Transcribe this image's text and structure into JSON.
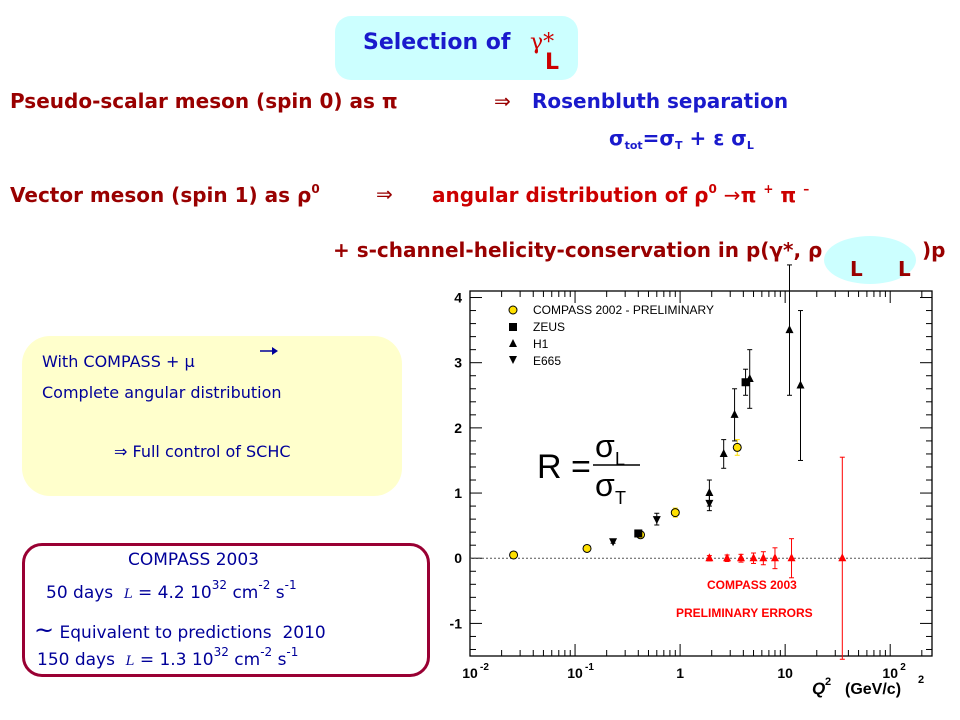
{
  "header": {
    "title_prefix": "Selection of",
    "title_gamma": "γ*",
    "title_sub": "L"
  },
  "lines": {
    "pseudo_left": "Pseudo-scalar meson (spin 0) as π",
    "arrow": "⇒",
    "pseudo_right": "Rosenbluth separation",
    "sigma_tot": "σ",
    "sigma_tot_sub": "tot",
    "sigma_eq": "=σ",
    "sigma_T_sub": "T",
    "sigma_plus": "+ ε σ",
    "sigma_L_sub": "L",
    "vector_left": "Vector meson (spin 1) as ρ",
    "vector_sup": "0",
    "vector_right": "angular distribution of ρ",
    "vector_right_sup": "0",
    "decay": "π",
    "plus_sup": "+",
    "minus_sup": "–",
    "schc": "+ s-channel-helicity-conservation in p(γ*, ρ",
    "schc_end": ")p",
    "schc_L1": "L",
    "schc_L2": "L"
  },
  "info_box": {
    "line1": "With COMPASS + μ",
    "line2": "Complete angular distribution",
    "line3": "⇒ Full control of SCHC"
  },
  "compass_box": {
    "title": "COMPASS 2003",
    "row1_prefix": "50 days",
    "row1_lumi": "L",
    "row1_value": "= 4.2 10",
    "row1_exp": "32",
    "row1_units": "cm",
    "row1_units_exp1": "-2",
    "row1_units_s": "s",
    "row1_units_exp2": "-1",
    "equiv_tilde": "~",
    "equiv_text": "Equivalent to predictions",
    "equiv_year": "2010",
    "row2_prefix": "150 days",
    "row2_lumi": "L",
    "row2_value": "= 1.3 10",
    "row2_exp": "32",
    "row2_units": "cm",
    "row2_units_exp1": "-2",
    "row2_units_s": "s",
    "row2_units_exp2": "-1"
  },
  "colors": {
    "title_blue": "#1a1acc",
    "dark_red": "#990000",
    "accent_red": "#cc0000",
    "compass_yellow": "#ffe000",
    "preliminary_red": "#ff0000"
  },
  "chart_data": {
    "type": "scatter",
    "x_scale": "log",
    "xlim": [
      0.01,
      250
    ],
    "ylim": [
      -1.5,
      4.1
    ],
    "x_ticks": [
      {
        "value": 0.01,
        "base": "10",
        "exp": "-2"
      },
      {
        "value": 0.1,
        "base": "10",
        "exp": "-1"
      },
      {
        "value": 1,
        "base": "1",
        "exp": ""
      },
      {
        "value": 10,
        "base": "10",
        "exp": ""
      },
      {
        "value": 100,
        "base": "10",
        "exp": "2"
      }
    ],
    "y_ticks": [
      "-1",
      "0",
      "1",
      "2",
      "3",
      "4"
    ],
    "xlabel": "Q",
    "xlabel_sup": "2",
    "xlabel_units": "(GeV/c)",
    "xlabel_units_sup": "2",
    "formula": {
      "lhs": "R =",
      "num": "σ",
      "num_sub": "L",
      "den": "σ",
      "den_sub": "T"
    },
    "annotations": [
      "COMPASS 2003",
      "PRELIMINARY  ERRORS"
    ],
    "series": [
      {
        "name": "COMPASS 2002 - PRELIMINARY",
        "marker": "circle",
        "color": "#ffe000",
        "points": [
          {
            "x": 0.026,
            "y": 0.05,
            "err": 0.03
          },
          {
            "x": 0.13,
            "y": 0.15,
            "err": 0.03
          },
          {
            "x": 0.42,
            "y": 0.36,
            "err": 0.04
          },
          {
            "x": 0.9,
            "y": 0.7,
            "err": 0.07
          },
          {
            "x": 3.5,
            "y": 1.7,
            "err": 0.12
          }
        ]
      },
      {
        "name": "ZEUS",
        "marker": "square",
        "color": "#000000",
        "points": [
          {
            "x": 0.4,
            "y": 0.38,
            "err": 0.05
          },
          {
            "x": 4.2,
            "y": 2.7,
            "err": 0.2
          }
        ]
      },
      {
        "name": "H1",
        "marker": "triangle-up",
        "color": "#000000",
        "points": [
          {
            "x": 1.9,
            "y": 1.0,
            "err": 0.2
          },
          {
            "x": 2.6,
            "y": 1.6,
            "err": 0.22
          },
          {
            "x": 3.3,
            "y": 2.2,
            "err": 0.4
          },
          {
            "x": 4.6,
            "y": 2.75,
            "err": 0.45
          },
          {
            "x": 11.0,
            "y": 3.5,
            "err": 1.0
          },
          {
            "x": 14.0,
            "y": 2.65,
            "err": 1.15
          }
        ]
      },
      {
        "name": "E665",
        "marker": "triangle-down",
        "color": "#000000",
        "points": [
          {
            "x": 0.23,
            "y": 0.26,
            "err": 0.03
          },
          {
            "x": 0.6,
            "y": 0.6,
            "err": 0.09
          },
          {
            "x": 1.9,
            "y": 0.85,
            "err": 0.12
          }
        ]
      },
      {
        "marker": "triangle-up",
        "color": "#ff0000",
        "points": [
          {
            "x": 1.9,
            "y": 0.0,
            "err": 0.04
          },
          {
            "x": 2.8,
            "y": 0.0,
            "err": 0.05
          },
          {
            "x": 3.8,
            "y": 0.0,
            "err": 0.06
          },
          {
            "x": 5.0,
            "y": 0.0,
            "err": 0.08
          },
          {
            "x": 6.2,
            "y": 0.0,
            "err": 0.1
          },
          {
            "x": 8.0,
            "y": 0.0,
            "err": 0.16
          },
          {
            "x": 11.5,
            "y": 0.0,
            "err": 0.3
          },
          {
            "x": 35.0,
            "y": 0.0,
            "err": 1.55
          }
        ]
      }
    ],
    "legend_placement": "top-left"
  }
}
